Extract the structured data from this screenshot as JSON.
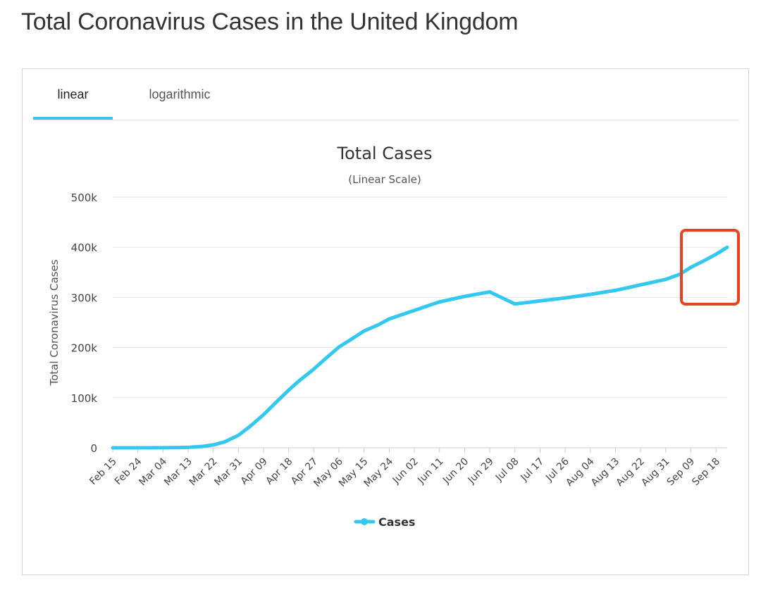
{
  "page": {
    "title": "Total Coronavirus Cases in the United Kingdom"
  },
  "tabs": [
    {
      "label": "linear",
      "active": true
    },
    {
      "label": "logarithmic",
      "active": false
    }
  ],
  "colors": {
    "series": "#33c8f0",
    "highlight_box": "#e8431c",
    "tab_underline": "#3cc4e8"
  },
  "chart_data": {
    "type": "line",
    "title": "Total Cases",
    "subtitle": "(Linear Scale)",
    "ylabel": "Total Coronavirus Cases",
    "xlabel": "",
    "ylim": [
      0,
      500000
    ],
    "y_ticks": [
      {
        "value": 0,
        "label": "0"
      },
      {
        "value": 100000,
        "label": "100k"
      },
      {
        "value": 200000,
        "label": "200k"
      },
      {
        "value": 300000,
        "label": "300k"
      },
      {
        "value": 400000,
        "label": "400k"
      },
      {
        "value": 500000,
        "label": "500k"
      }
    ],
    "x_ticks": [
      "Feb 15",
      "Feb 24",
      "Mar 04",
      "Mar 13",
      "Mar 22",
      "Mar 31",
      "Apr 09",
      "Apr 18",
      "Apr 27",
      "May 06",
      "May 15",
      "May 24",
      "Jun 02",
      "Jun 11",
      "Jun 20",
      "Jun 29",
      "Jul 08",
      "Jul 17",
      "Jul 26",
      "Aug 04",
      "Aug 13",
      "Aug 22",
      "Aug 31",
      "Sep 09",
      "Sep 18"
    ],
    "grid": true,
    "legend": "bottom-center",
    "series": [
      {
        "name": "Cases",
        "x": [
          "2020-02-15",
          "2020-02-24",
          "2020-03-04",
          "2020-03-13",
          "2020-03-18",
          "2020-03-22",
          "2020-03-26",
          "2020-03-31",
          "2020-04-04",
          "2020-04-09",
          "2020-04-13",
          "2020-04-18",
          "2020-04-22",
          "2020-04-27",
          "2020-05-01",
          "2020-05-06",
          "2020-05-10",
          "2020-05-15",
          "2020-05-20",
          "2020-05-24",
          "2020-06-02",
          "2020-06-11",
          "2020-06-20",
          "2020-06-29",
          "2020-07-08",
          "2020-07-17",
          "2020-07-26",
          "2020-08-04",
          "2020-08-13",
          "2020-08-22",
          "2020-08-31",
          "2020-09-05",
          "2020-09-09",
          "2020-09-14",
          "2020-09-18",
          "2020-09-22"
        ],
        "y": [
          0,
          0,
          100,
          800,
          2600,
          5700,
          11700,
          25000,
          42000,
          66000,
          88000,
          115000,
          135000,
          157000,
          177000,
          201000,
          215000,
          233000,
          245000,
          257000,
          274000,
          291000,
          302000,
          311000,
          287000,
          293000,
          299000,
          306000,
          314000,
          325000,
          336000,
          346000,
          360000,
          374000,
          386000,
          400000
        ]
      }
    ],
    "annotation": "highlight-box-latest-rise"
  }
}
